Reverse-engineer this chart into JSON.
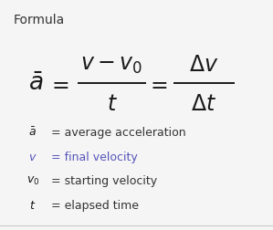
{
  "title": "Formula",
  "title_color": "#333333",
  "title_fontsize": 10,
  "bg_color": "#f5f5f5",
  "formula_color": "#1a1a1a",
  "highlight_color": "#5555bb",
  "legend_items": [
    {
      "symbol": "$\\bar{a}$",
      "text": " = average acceleration",
      "text_color": "#333333",
      "sym_color": "#1a1a1a"
    },
    {
      "symbol": "$v$",
      "text": " = final velocity",
      "text_color": "#5555bb",
      "sym_color": "#5555bb"
    },
    {
      "symbol": "$v_0$",
      "text": " = starting velocity",
      "text_color": "#333333",
      "sym_color": "#1a1a1a"
    },
    {
      "symbol": "$t$",
      "text": " = elapsed time",
      "text_color": "#333333",
      "sym_color": "#1a1a1a"
    }
  ],
  "figsize": [
    2.99,
    2.53
  ],
  "dpi": 100
}
